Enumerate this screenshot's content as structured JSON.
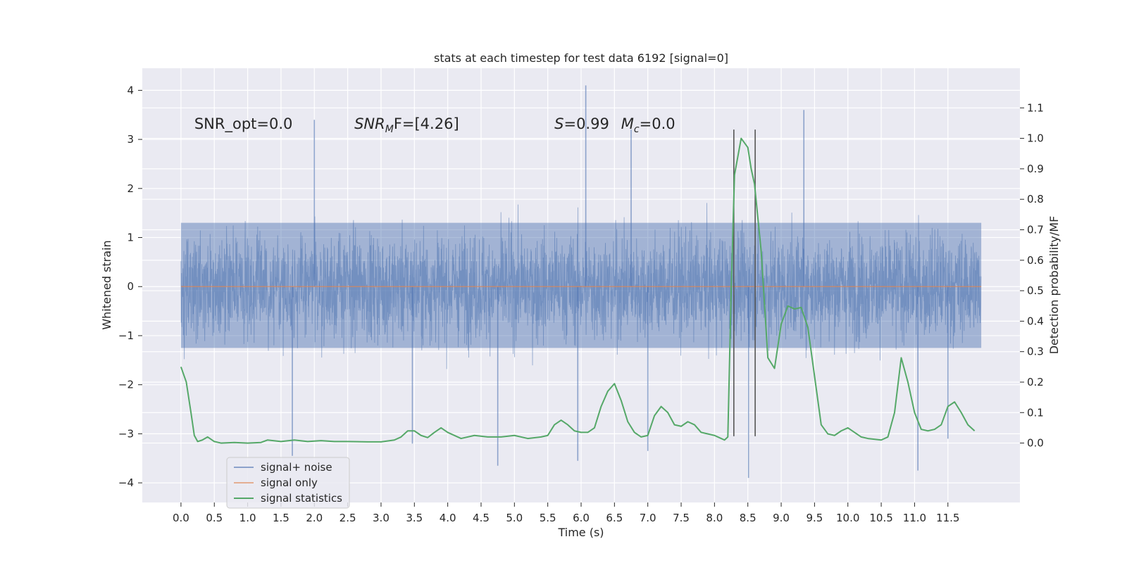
{
  "chart_data": {
    "type": "line",
    "title": "stats at each timestep for test data 6192 [signal=0]",
    "xlabel": "Time (s)",
    "ylabel_left": "Whitened strain",
    "ylabel_right": "Detection probability/MF",
    "xlim": [
      -0.58,
      12.58
    ],
    "ylim_left": [
      -4.4,
      4.45
    ],
    "ylim_right": [
      -0.195,
      1.23
    ],
    "x_ticks": [
      0.0,
      0.5,
      1.0,
      1.5,
      2.0,
      2.5,
      3.0,
      3.5,
      4.0,
      4.5,
      5.0,
      5.5,
      6.0,
      6.5,
      7.0,
      7.5,
      8.0,
      8.5,
      9.0,
      9.5,
      10.0,
      10.5,
      11.0,
      11.5
    ],
    "x_tick_labels": [
      "0.0",
      "0.5",
      "1.0",
      "1.5",
      "2.0",
      "2.5",
      "3.0",
      "3.5",
      "4.0",
      "4.5",
      "5.0",
      "5.5",
      "6.0",
      "6.5",
      "7.0",
      "7.5",
      "8.0",
      "8.5",
      "9.0",
      "9.5",
      "10.0",
      "10.5",
      "11.0",
      "11.5"
    ],
    "y_left_ticks": [
      -4,
      -3,
      -2,
      -1,
      0,
      1,
      2,
      3,
      4
    ],
    "y_left_tick_labels": [
      "−4",
      "−3",
      "−2",
      "−1",
      "0",
      "1",
      "2",
      "3",
      "4"
    ],
    "y_right_ticks": [
      0.0,
      0.1,
      0.2,
      0.3,
      0.4,
      0.5,
      0.6,
      0.7,
      0.8,
      0.9,
      1.0,
      1.1
    ],
    "y_right_tick_labels": [
      "0.0",
      "0.1",
      "0.2",
      "0.3",
      "0.4",
      "0.5",
      "0.6",
      "0.7",
      "0.8",
      "0.9",
      "1.0",
      "1.1"
    ],
    "grid": true,
    "legend_position": "lower-left",
    "series": [
      {
        "name": "signal+ noise",
        "axis": "left",
        "color": "#4c72b0",
        "kind": "noise",
        "x_range": [
          0.0,
          12.0
        ],
        "core_range": [
          -1.25,
          1.3
        ],
        "typical_peaks": [
          -2.5,
          2.5
        ],
        "notable_spikes": [
          {
            "x": 6.07,
            "y": 4.1
          },
          {
            "x": 9.34,
            "y": 3.6
          },
          {
            "x": 2.0,
            "y": 3.4
          },
          {
            "x": 6.75,
            "y": 3.2
          },
          {
            "x": 8.51,
            "y": -3.9
          },
          {
            "x": 11.05,
            "y": -3.75
          },
          {
            "x": 4.75,
            "y": -3.65
          },
          {
            "x": 1.67,
            "y": -3.45
          },
          {
            "x": 5.95,
            "y": -3.55
          },
          {
            "x": 7.0,
            "y": -3.35
          },
          {
            "x": 3.47,
            "y": -3.2
          },
          {
            "x": 11.5,
            "y": -3.1
          }
        ]
      },
      {
        "name": "signal only",
        "axis": "left",
        "color": "#dd8452",
        "x": [
          0.0,
          12.0
        ],
        "y": [
          0.0,
          0.0
        ]
      },
      {
        "name": "signal statistics",
        "axis": "right",
        "color": "#55a868",
        "x": [
          0.0,
          0.08,
          0.15,
          0.2,
          0.25,
          0.32,
          0.4,
          0.5,
          0.6,
          0.8,
          1.0,
          1.2,
          1.3,
          1.5,
          1.7,
          1.9,
          2.1,
          2.3,
          2.5,
          2.8,
          3.0,
          3.2,
          3.3,
          3.4,
          3.5,
          3.6,
          3.7,
          3.8,
          3.9,
          4.0,
          4.2,
          4.4,
          4.6,
          4.8,
          5.0,
          5.2,
          5.4,
          5.5,
          5.6,
          5.7,
          5.8,
          5.9,
          6.0,
          6.1,
          6.2,
          6.3,
          6.4,
          6.5,
          6.6,
          6.7,
          6.8,
          6.9,
          7.0,
          7.1,
          7.2,
          7.3,
          7.4,
          7.5,
          7.6,
          7.7,
          7.8,
          8.0,
          8.1,
          8.15,
          8.2,
          8.25,
          8.3,
          8.4,
          8.5,
          8.55,
          8.6,
          8.7,
          8.8,
          8.9,
          9.0,
          9.1,
          9.2,
          9.3,
          9.4,
          9.5,
          9.6,
          9.7,
          9.8,
          9.9,
          10.0,
          10.1,
          10.2,
          10.3,
          10.5,
          10.6,
          10.7,
          10.8,
          10.9,
          11.0,
          11.1,
          11.2,
          11.3,
          11.4,
          11.5,
          11.6,
          11.7,
          11.8,
          11.9
        ],
        "y": [
          0.25,
          0.2,
          0.1,
          0.025,
          0.005,
          0.01,
          0.02,
          0.005,
          0.0,
          0.002,
          0.0,
          0.002,
          0.01,
          0.005,
          0.01,
          0.005,
          0.008,
          0.005,
          0.005,
          0.004,
          0.004,
          0.01,
          0.02,
          0.04,
          0.04,
          0.025,
          0.018,
          0.035,
          0.05,
          0.035,
          0.015,
          0.025,
          0.02,
          0.02,
          0.025,
          0.015,
          0.02,
          0.025,
          0.06,
          0.075,
          0.06,
          0.04,
          0.035,
          0.035,
          0.05,
          0.12,
          0.17,
          0.195,
          0.14,
          0.07,
          0.035,
          0.02,
          0.025,
          0.09,
          0.12,
          0.1,
          0.06,
          0.055,
          0.07,
          0.06,
          0.035,
          0.025,
          0.015,
          0.01,
          0.02,
          0.5,
          0.88,
          1.0,
          0.97,
          0.9,
          0.85,
          0.63,
          0.28,
          0.245,
          0.39,
          0.45,
          0.44,
          0.445,
          0.38,
          0.22,
          0.06,
          0.03,
          0.025,
          0.04,
          0.05,
          0.035,
          0.02,
          0.015,
          0.01,
          0.02,
          0.1,
          0.28,
          0.2,
          0.1,
          0.045,
          0.04,
          0.045,
          0.06,
          0.12,
          0.135,
          0.1,
          0.06,
          0.04
        ]
      }
    ],
    "vertical_markers": {
      "color": "#555555",
      "x": [
        8.29,
        8.61
      ],
      "y_top": 3.2,
      "y_bottom": -3.05
    },
    "annotations": [
      {
        "id": "snr-opt",
        "text": "SNR_opt=0.0",
        "x": 0.2,
        "y": 3.22
      },
      {
        "id": "snr-mf",
        "text_main": "SNR",
        "text_sub": "M",
        "text_tail": "F=[4.26]",
        "x": 2.6,
        "y": 3.22
      },
      {
        "id": "stat-s",
        "text_main": "S",
        "text_tail": "=0.99",
        "x": 5.6,
        "y": 3.22
      },
      {
        "id": "stat-mc",
        "text_main": "M",
        "text_sub": "c",
        "text_tail": "=0.0",
        "x": 6.6,
        "y": 3.22
      }
    ],
    "legend": [
      {
        "label": "signal+ noise",
        "color": "#4c72b0"
      },
      {
        "label": "signal only",
        "color": "#dd8452"
      },
      {
        "label": "signal statistics",
        "color": "#55a868"
      }
    ]
  }
}
